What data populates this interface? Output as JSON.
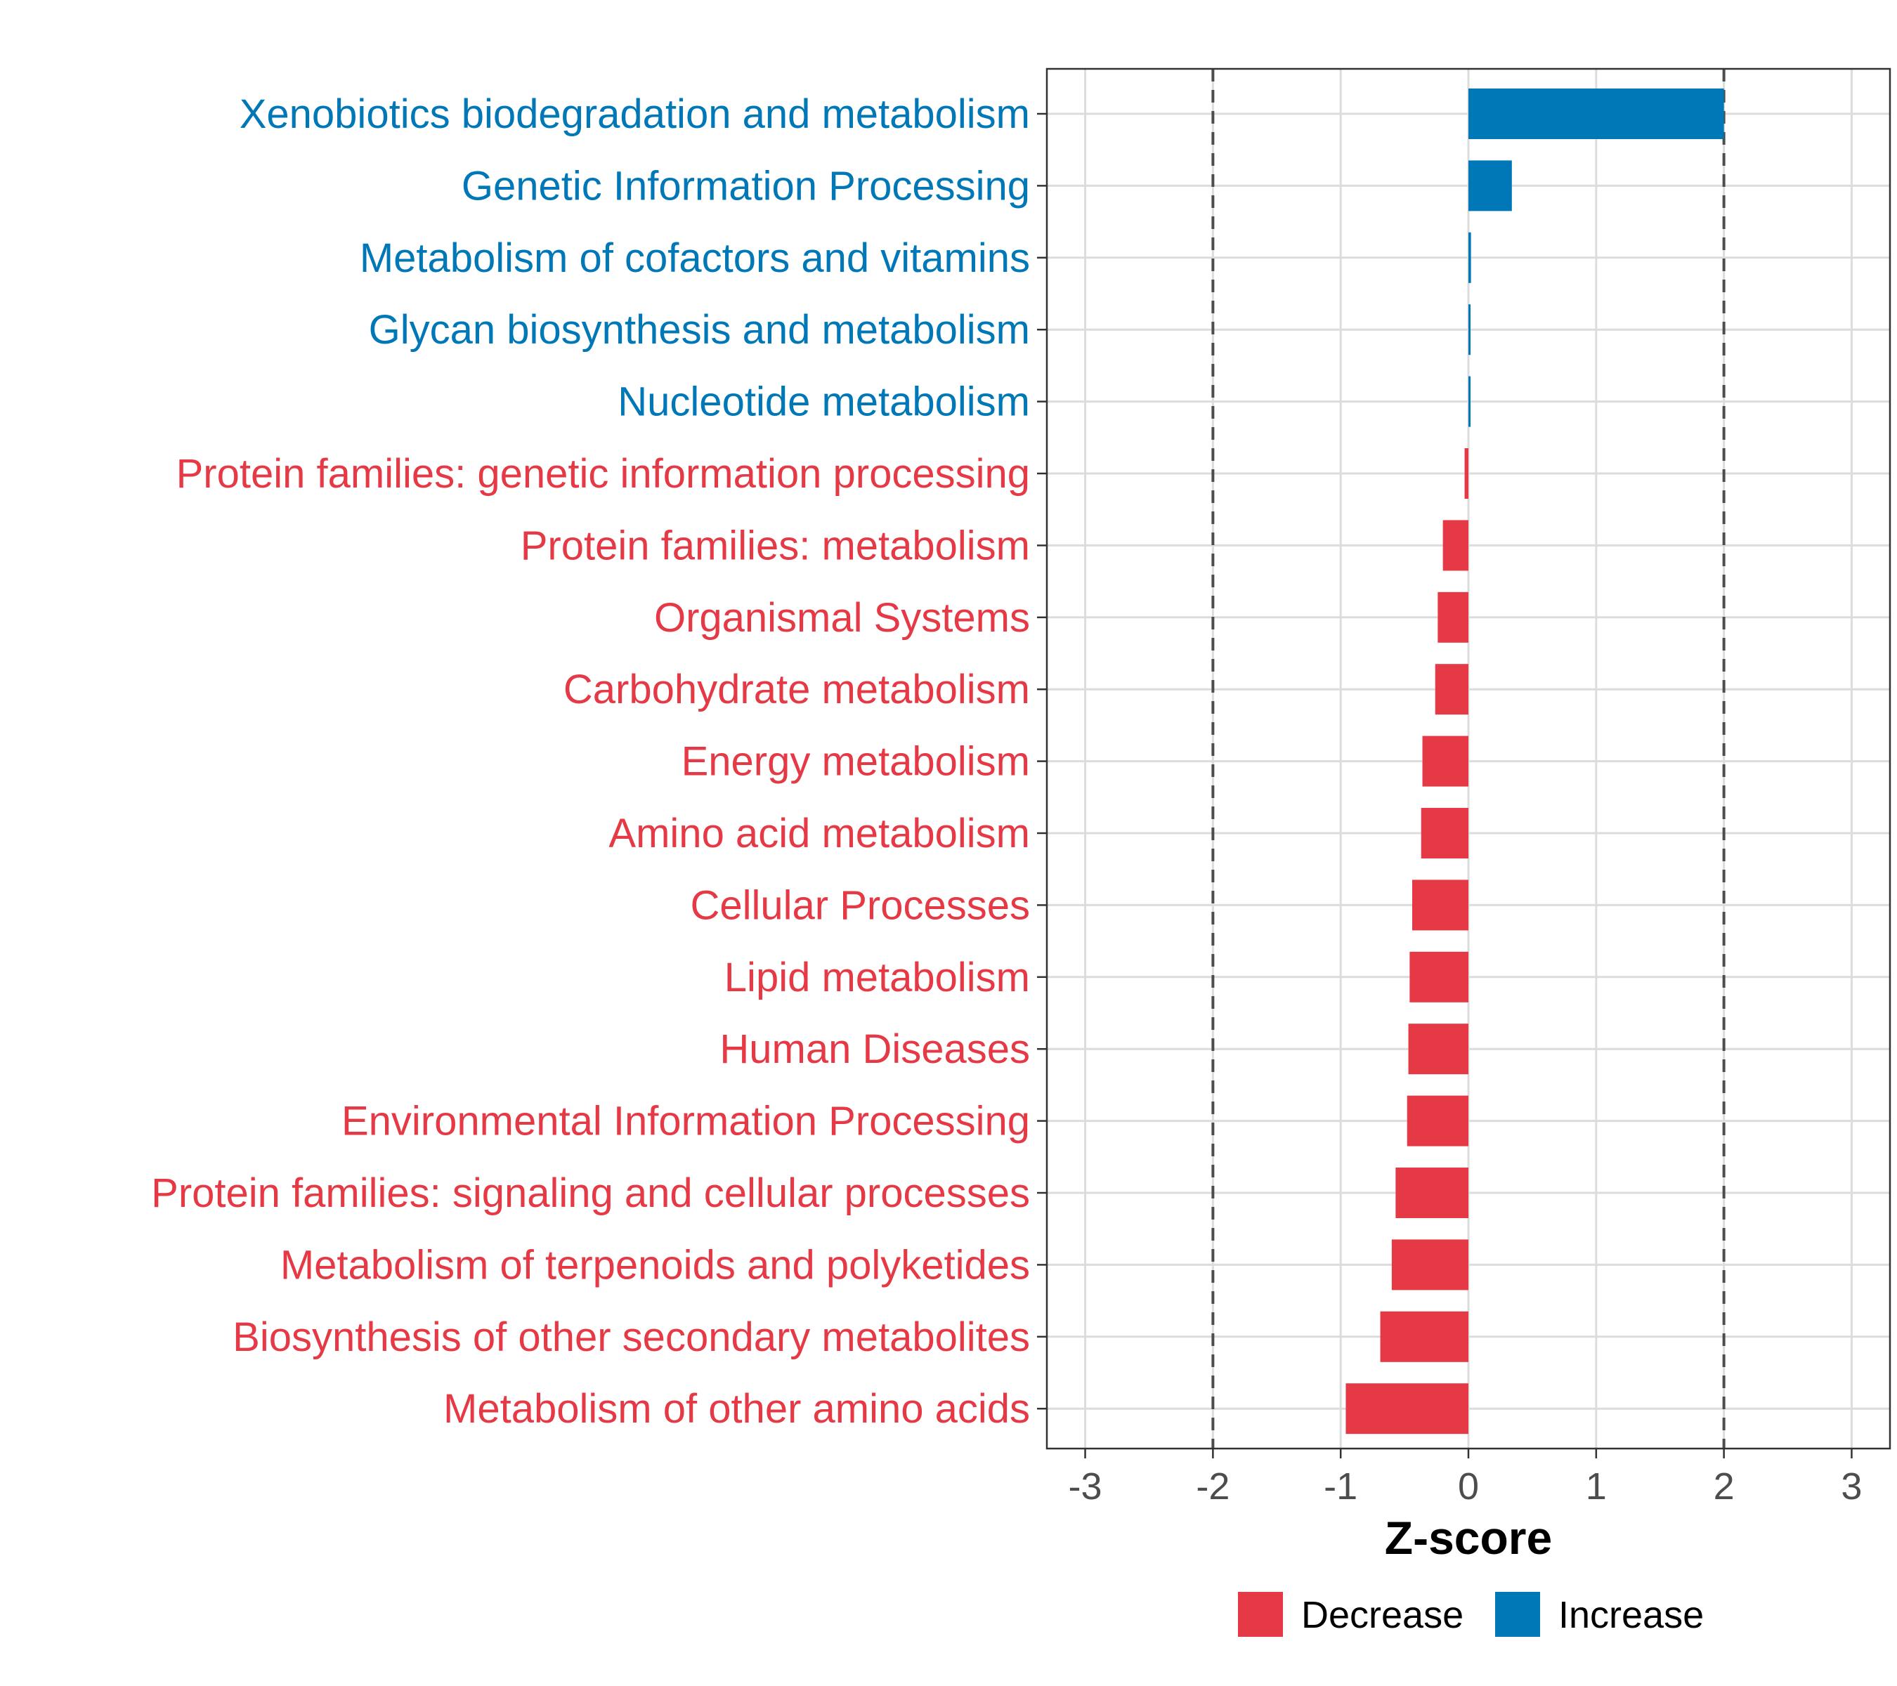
{
  "chart_data": {
    "type": "bar",
    "orientation": "horizontal",
    "xlabel": "Z-score",
    "xlim": [
      -3.3,
      3.3
    ],
    "xticks": [
      -3,
      -2,
      -1,
      0,
      1,
      2,
      3
    ],
    "xtick_labels": [
      "-3",
      "-2",
      "-1",
      "0",
      "1",
      "2",
      "3"
    ],
    "reference_lines": [
      -2,
      2
    ],
    "grid": true,
    "legend_position": "bottom",
    "colors": {
      "Decrease": "#e63946",
      "Increase": "#0077b6"
    },
    "legend": [
      {
        "key": "Decrease",
        "label": "Decrease"
      },
      {
        "key": "Increase",
        "label": "Increase"
      }
    ],
    "categories": [
      "Xenobiotics biodegradation and metabolism",
      "Genetic Information Processing",
      "Metabolism of cofactors and vitamins",
      "Glycan biosynthesis and metabolism",
      "Nucleotide metabolism",
      "Protein families: genetic information processing",
      "Protein families: metabolism",
      "Organismal Systems",
      "Carbohydrate metabolism",
      "Energy metabolism",
      "Amino acid metabolism",
      "Cellular Processes",
      "Lipid metabolism",
      "Human Diseases",
      "Environmental Information Processing",
      "Protein families: signaling and cellular processes",
      "Metabolism of terpenoids and polyketides",
      "Biosynthesis of other secondary metabolites",
      "Metabolism of other amino acids"
    ],
    "values": [
      2.0,
      0.34,
      0.02,
      0.01,
      0.005,
      -0.03,
      -0.2,
      -0.24,
      -0.26,
      -0.36,
      -0.37,
      -0.44,
      -0.46,
      -0.47,
      -0.48,
      -0.57,
      -0.6,
      -0.69,
      -0.96
    ],
    "groups": [
      "Increase",
      "Increase",
      "Increase",
      "Increase",
      "Increase",
      "Decrease",
      "Decrease",
      "Decrease",
      "Decrease",
      "Decrease",
      "Decrease",
      "Decrease",
      "Decrease",
      "Decrease",
      "Decrease",
      "Decrease",
      "Decrease",
      "Decrease",
      "Decrease"
    ]
  }
}
